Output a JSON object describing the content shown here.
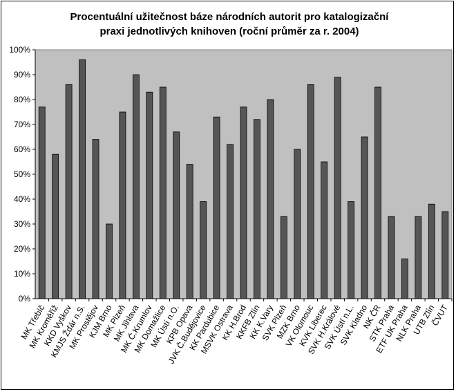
{
  "chart_data": {
    "type": "bar",
    "title_line1": "Procentuální užitečnost báze národních autorit pro katalogizační",
    "title_line2": "praxi jednotlivých knihoven (roční průměr za r. 2004)",
    "categories": [
      "MK Třebíč",
      "MK Kroměříž",
      "KKD Vyškov",
      "KMJS Žďár n.S.",
      "MK Prostějov",
      "KJM Brno",
      "MK Plzeň",
      "MK Jihlava",
      "MK Č.Krumlov",
      "MK Domažlice",
      "MK Ústí n.O.",
      "KPB Opava",
      "JVK Č.Budějovice",
      "KK Pardubice",
      "MSVK Ostrava",
      "KK H.Brod",
      "KKFB Zlín",
      "KK K.Vary",
      "SVK Plzeň",
      "MZK Brno",
      "VK Olomouc",
      "KVK Liberec",
      "SVK H.Králové",
      "SVK Ústí n.L.",
      "SVK Kladno",
      "NK ČR",
      "STK Praha",
      "ETF UK Praha",
      "NLK Praha",
      "UTB Zlín",
      "ČVUT"
    ],
    "values": [
      77,
      58,
      86,
      96,
      64,
      30,
      75,
      90,
      83,
      85,
      67,
      54,
      39,
      73,
      62,
      77,
      72,
      80,
      33,
      60,
      86,
      55,
      89,
      39,
      65,
      85,
      33,
      16,
      33,
      38,
      35
    ],
    "ylim": [
      0,
      100
    ],
    "yticks": [
      "0%",
      "10%",
      "20%",
      "30%",
      "40%",
      "50%",
      "60%",
      "70%",
      "80%",
      "90%",
      "100%"
    ],
    "grid": false,
    "legend": "none",
    "colors": {
      "plot_bg": "#c0c0c0",
      "bar": "#555555",
      "axis": "#000000"
    }
  }
}
